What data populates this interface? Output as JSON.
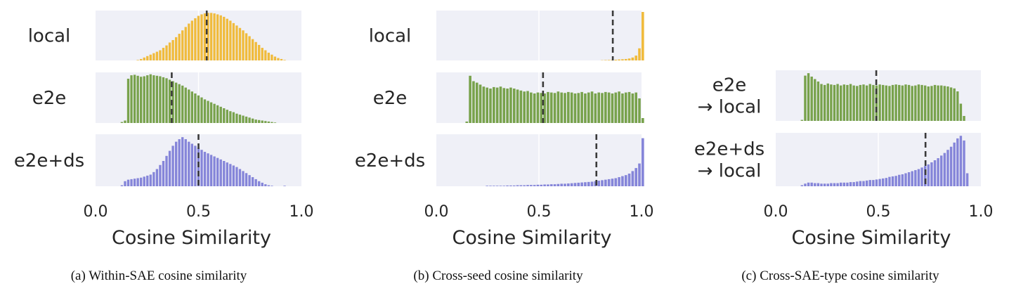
{
  "colors": {
    "panel_bg": "#eff0f7",
    "grid": "#ffffff",
    "mean_line": "#3a3a3a",
    "local": "#f0bb3c",
    "e2e": "#78a24c",
    "e2e_ds": "#8585d9"
  },
  "chart_data": [
    {
      "type": "histogram",
      "caption": "(a) Within-SAE cosine similarity",
      "xlabel": "Cosine Similarity",
      "xlim": [
        0,
        1
      ],
      "xticks": [
        "0.0",
        "0.5",
        "1.0"
      ],
      "grid": true,
      "bin_start": 0.12,
      "bin_width": 0.0155,
      "rows": [
        {
          "label": [
            "local"
          ],
          "color_key": "local",
          "mean": 0.54,
          "values": [
            0,
            0,
            0,
            0,
            0,
            0.01,
            0.03,
            0.06,
            0.09,
            0.12,
            0.15,
            0.18,
            0.21,
            0.26,
            0.31,
            0.37,
            0.42,
            0.48,
            0.55,
            0.62,
            0.69,
            0.76,
            0.82,
            0.87,
            0.92,
            0.95,
            0.97,
            0.98,
            0.98,
            0.97,
            0.95,
            0.93,
            0.9,
            0.86,
            0.82,
            0.77,
            0.72,
            0.67,
            0.62,
            0.56,
            0.5,
            0.44,
            0.38,
            0.32,
            0.26,
            0.21,
            0.16,
            0.12,
            0.08,
            0.05,
            0.03,
            0.01
          ]
        },
        {
          "label": [
            "e2e"
          ],
          "color_key": "e2e",
          "mean": 0.37,
          "values": [
            0.02,
            0.05,
            0.9,
            0.97,
            0.98,
            0.96,
            0.94,
            0.95,
            0.97,
            0.99,
            0.97,
            0.96,
            0.95,
            0.93,
            0.91,
            0.88,
            0.85,
            0.82,
            0.79,
            0.76,
            0.72,
            0.68,
            0.64,
            0.6,
            0.56,
            0.52,
            0.48,
            0.45,
            0.42,
            0.39,
            0.36,
            0.33,
            0.3,
            0.27,
            0.24,
            0.22,
            0.19,
            0.17,
            0.15,
            0.13,
            0.11,
            0.09,
            0.07,
            0.06,
            0.05,
            0.04,
            0.03,
            0.02,
            0.01
          ]
        },
        {
          "label": [
            "e2e+ds"
          ],
          "color_key": "e2e_ds",
          "mean": 0.5,
          "values": [
            0.02,
            0.1,
            0.13,
            0.14,
            0.15,
            0.16,
            0.17,
            0.19,
            0.21,
            0.23,
            0.28,
            0.34,
            0.42,
            0.5,
            0.6,
            0.7,
            0.8,
            0.88,
            0.93,
            0.97,
            0.93,
            0.88,
            0.84,
            0.8,
            0.76,
            0.72,
            0.68,
            0.65,
            0.62,
            0.59,
            0.56,
            0.53,
            0.5,
            0.47,
            0.44,
            0.41,
            0.38,
            0.34,
            0.3,
            0.26,
            0.22,
            0.18,
            0.14,
            0.1,
            0.07,
            0.04,
            0.02,
            0.01,
            0,
            0,
            0,
            0.01
          ]
        }
      ]
    },
    {
      "type": "histogram",
      "caption": "(b) Cross-seed cosine similarity",
      "xlabel": "Cosine Similarity",
      "xlim": [
        0,
        1
      ],
      "xticks": [
        "0.0",
        "0.5",
        "1.0"
      ],
      "grid": true,
      "bin_start": 0.14,
      "bin_width": 0.0165,
      "rows": [
        {
          "label": [
            "local"
          ],
          "color_key": "local",
          "mean": 0.86,
          "values": [
            0,
            0,
            0,
            0,
            0,
            0,
            0,
            0,
            0,
            0,
            0,
            0,
            0,
            0,
            0,
            0,
            0,
            0,
            0,
            0,
            0,
            0,
            0,
            0,
            0,
            0,
            0,
            0,
            0,
            0,
            0,
            0,
            0,
            0,
            0,
            0,
            0,
            0,
            0,
            0,
            0.005,
            0.008,
            0.01,
            0.012,
            0.015,
            0.02,
            0.025,
            0.03,
            0.04,
            0.06,
            0.1,
            0.25,
            1.0
          ]
        },
        {
          "label": [
            "e2e"
          ],
          "color_key": "e2e",
          "mean": 0.52,
          "values": [
            0.03,
            0.96,
            0.85,
            0.82,
            0.78,
            0.74,
            0.72,
            0.7,
            0.73,
            0.72,
            0.74,
            0.71,
            0.7,
            0.72,
            0.7,
            0.68,
            0.66,
            0.64,
            0.65,
            0.62,
            0.6,
            0.62,
            0.61,
            0.6,
            0.63,
            0.62,
            0.61,
            0.64,
            0.62,
            0.61,
            0.63,
            0.62,
            0.6,
            0.61,
            0.63,
            0.6,
            0.62,
            0.64,
            0.6,
            0.62,
            0.61,
            0.63,
            0.62,
            0.6,
            0.62,
            0.64,
            0.6,
            0.62,
            0.63,
            0.6,
            0.62,
            0.5,
            0.1
          ]
        },
        {
          "label": [
            "e2e+ds"
          ],
          "color_key": "e2e_ds",
          "mean": 0.78,
          "values": [
            0,
            0,
            0,
            0,
            0,
            0,
            0.01,
            0.01,
            0.01,
            0.01,
            0.01,
            0.01,
            0.015,
            0.015,
            0.015,
            0.02,
            0.02,
            0.02,
            0.025,
            0.025,
            0.025,
            0.03,
            0.03,
            0.035,
            0.035,
            0.04,
            0.04,
            0.045,
            0.05,
            0.05,
            0.055,
            0.06,
            0.065,
            0.07,
            0.075,
            0.08,
            0.085,
            0.09,
            0.1,
            0.11,
            0.12,
            0.13,
            0.14,
            0.15,
            0.16,
            0.18,
            0.2,
            0.22,
            0.25,
            0.3,
            0.36,
            0.45,
            0.95
          ]
        }
      ]
    },
    {
      "type": "histogram",
      "caption": "(c) Cross-SAE-type cosine similarity",
      "xlabel": "Cosine Similarity",
      "xlim": [
        0,
        1
      ],
      "xticks": [
        "0.0",
        "0.5",
        "1.0"
      ],
      "grid": true,
      "bin_start": 0.12,
      "bin_width": 0.0158,
      "rows": [
        {
          "label": [
            "e2e",
            "→ local"
          ],
          "color_key": "e2e",
          "mean": 0.49,
          "values": [
            0.02,
            0.92,
            0.97,
            0.9,
            0.85,
            0.8,
            0.75,
            0.73,
            0.76,
            0.74,
            0.73,
            0.75,
            0.72,
            0.74,
            0.73,
            0.75,
            0.72,
            0.71,
            0.73,
            0.74,
            0.72,
            0.75,
            0.73,
            0.72,
            0.74,
            0.73,
            0.72,
            0.71,
            0.73,
            0.74,
            0.73,
            0.72,
            0.74,
            0.73,
            0.71,
            0.72,
            0.74,
            0.73,
            0.72,
            0.7,
            0.71,
            0.73,
            0.72,
            0.72,
            0.71,
            0.7,
            0.68,
            0.66,
            0.6,
            0.35,
            0.1
          ]
        },
        {
          "label": [
            "e2e+ds",
            "→ local"
          ],
          "color_key": "e2e_ds",
          "mean": 0.73,
          "values": [
            0.02,
            0.05,
            0.07,
            0.07,
            0.06,
            0.06,
            0.05,
            0.05,
            0.05,
            0.06,
            0.06,
            0.06,
            0.07,
            0.07,
            0.07,
            0.08,
            0.08,
            0.09,
            0.1,
            0.1,
            0.11,
            0.12,
            0.12,
            0.13,
            0.14,
            0.15,
            0.16,
            0.18,
            0.19,
            0.2,
            0.22,
            0.23,
            0.25,
            0.27,
            0.29,
            0.31,
            0.33,
            0.36,
            0.39,
            0.42,
            0.46,
            0.5,
            0.54,
            0.59,
            0.64,
            0.7,
            0.76,
            0.84,
            0.92,
            0.97,
            0.88,
            0.25
          ]
        }
      ]
    }
  ]
}
